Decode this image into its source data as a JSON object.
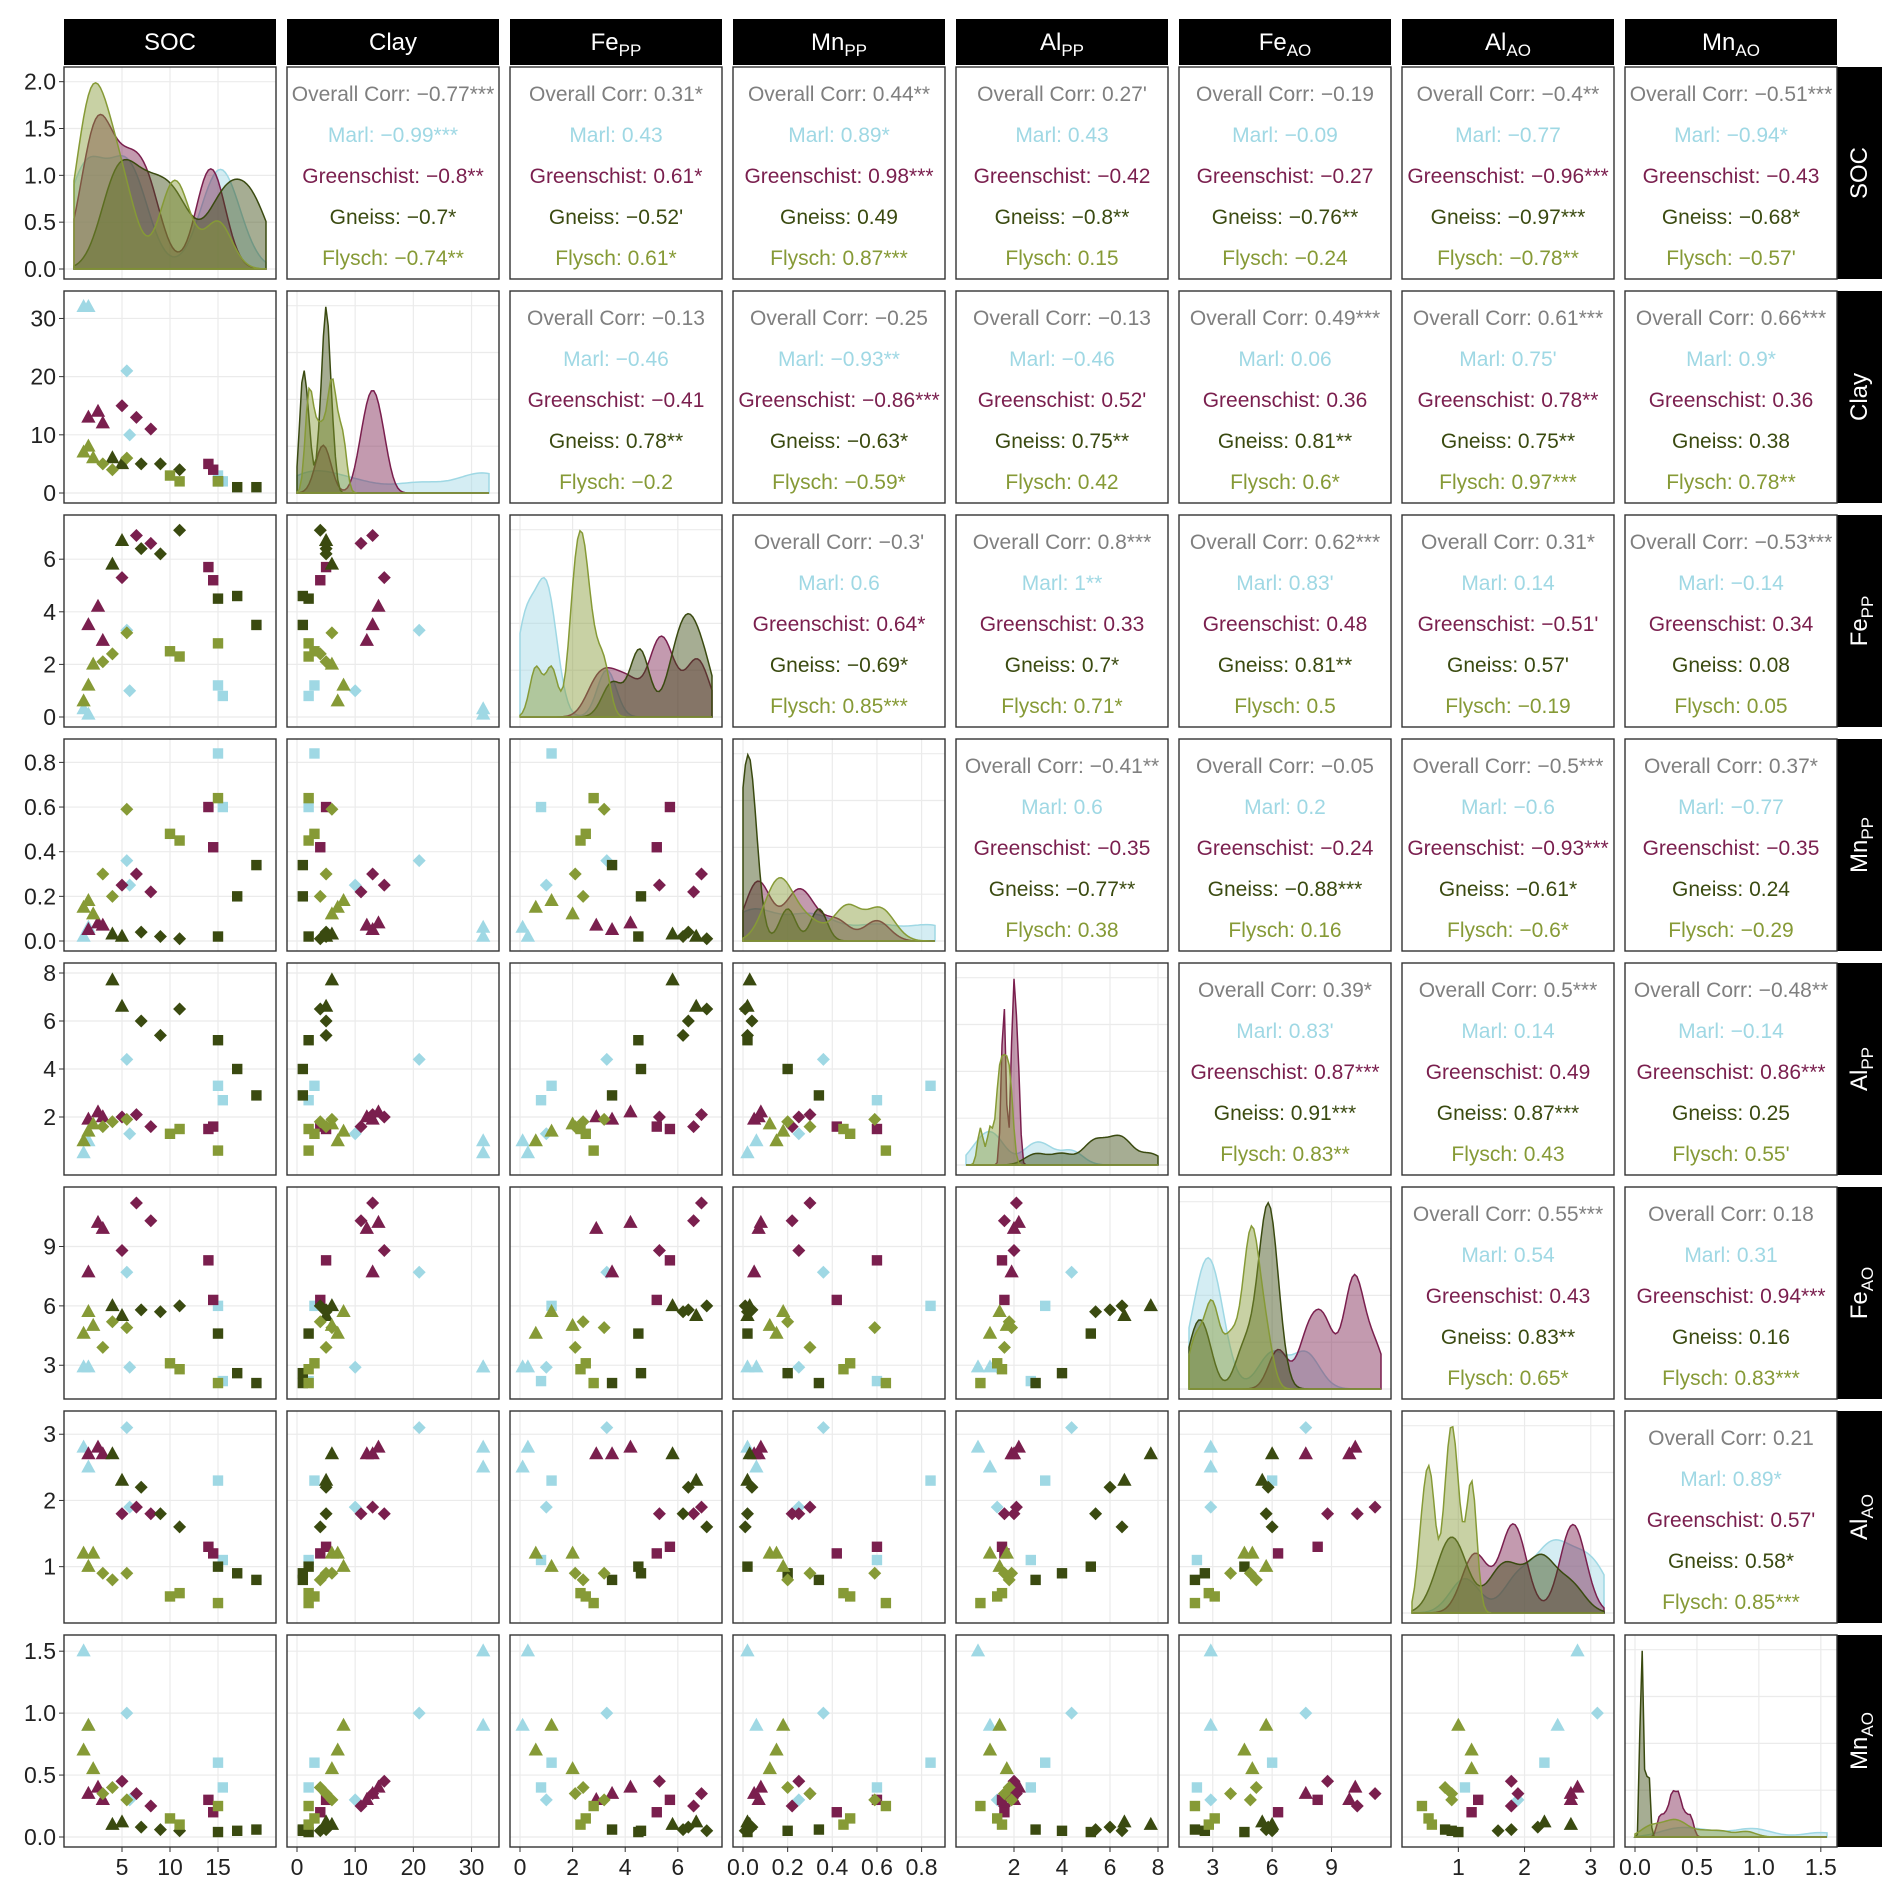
{
  "chart_data": {
    "type": "scatter",
    "title": "",
    "variables": [
      {
        "name": "SOC",
        "base": "SOC",
        "sub": "",
        "ticks": [
          5,
          10,
          15
        ],
        "range": [
          0,
          20
        ]
      },
      {
        "name": "Clay",
        "base": "Clay",
        "sub": "",
        "ticks": [
          0,
          10,
          20,
          30
        ],
        "range": [
          0,
          33
        ]
      },
      {
        "name": "FePP",
        "base": "Fe",
        "sub": "PP",
        "ticks": [
          0,
          2,
          4,
          6
        ],
        "range": [
          0,
          7.3
        ]
      },
      {
        "name": "MnPP",
        "base": "Mn",
        "sub": "PP",
        "ticks": [
          0.0,
          0.2,
          0.4,
          0.6,
          0.8
        ],
        "range": [
          0,
          0.86
        ]
      },
      {
        "name": "AlPP",
        "base": "Al",
        "sub": "PP",
        "ticks": [
          2,
          4,
          6,
          8
        ],
        "range": [
          0,
          8
        ]
      },
      {
        "name": "FeAO",
        "base": "Fe",
        "sub": "AO",
        "ticks": [
          3,
          6,
          9
        ],
        "range": [
          1.8,
          11.5
        ]
      },
      {
        "name": "AlAO",
        "base": "Al",
        "sub": "AO",
        "ticks": [
          1,
          2,
          3
        ],
        "range": [
          0.3,
          3.2
        ]
      },
      {
        "name": "MnAO",
        "base": "Mn",
        "sub": "AO",
        "ticks": [
          0.0,
          0.5,
          1.0,
          1.5
        ],
        "range": [
          0,
          1.55
        ]
      }
    ],
    "density_axis": {
      "ticks": [
        "0.0",
        "0.5",
        "1.0",
        "1.5",
        "2.0"
      ],
      "range": [
        0,
        2.05
      ]
    },
    "groups": [
      {
        "name": "Marl",
        "color": "#9fd8e4"
      },
      {
        "name": "Greenschist",
        "color": "#7a1f4e"
      },
      {
        "name": "Gneiss",
        "color": "#3a4a10"
      },
      {
        "name": "Flysch",
        "color": "#869a36"
      }
    ],
    "overall_label": "Overall Corr",
    "overall_color": "#7f7f7f",
    "samples": [
      {
        "g": 0,
        "s": "triangle",
        "v": [
          1.0,
          32,
          0.3,
          0.02,
          0.5,
          2.9,
          2.8,
          1.5
        ]
      },
      {
        "g": 0,
        "s": "triangle",
        "v": [
          1.5,
          32,
          0.1,
          0.06,
          1.0,
          2.9,
          2.5,
          0.9
        ]
      },
      {
        "g": 0,
        "s": "diamond",
        "v": [
          5.5,
          21,
          3.3,
          0.36,
          4.4,
          7.7,
          3.1,
          1.0
        ]
      },
      {
        "g": 0,
        "s": "diamond",
        "v": [
          5.8,
          10,
          1.0,
          0.25,
          1.3,
          2.9,
          1.9,
          0.3
        ]
      },
      {
        "g": 0,
        "s": "square",
        "v": [
          15,
          3,
          1.2,
          0.84,
          3.3,
          6.0,
          2.3,
          0.6
        ]
      },
      {
        "g": 0,
        "s": "square",
        "v": [
          15.5,
          2,
          0.8,
          0.6,
          2.7,
          2.2,
          1.1,
          0.4
        ]
      },
      {
        "g": 1,
        "s": "triangle",
        "v": [
          1.5,
          13,
          3.5,
          0.05,
          1.9,
          7.7,
          2.7,
          0.35
        ]
      },
      {
        "g": 1,
        "s": "triangle",
        "v": [
          2.5,
          14,
          4.2,
          0.08,
          2.2,
          10.2,
          2.8,
          0.4
        ]
      },
      {
        "g": 1,
        "s": "triangle",
        "v": [
          3.0,
          12,
          2.9,
          0.07,
          2.0,
          9.9,
          2.7,
          0.3
        ]
      },
      {
        "g": 1,
        "s": "diamond",
        "v": [
          5.0,
          15,
          5.3,
          0.25,
          2.0,
          8.8,
          1.8,
          0.45
        ]
      },
      {
        "g": 1,
        "s": "diamond",
        "v": [
          6.5,
          13,
          6.9,
          0.3,
          2.1,
          11.2,
          1.9,
          0.35
        ]
      },
      {
        "g": 1,
        "s": "diamond",
        "v": [
          8.0,
          11,
          6.6,
          0.22,
          1.6,
          10.3,
          1.8,
          0.25
        ]
      },
      {
        "g": 1,
        "s": "square",
        "v": [
          14,
          5,
          5.7,
          0.6,
          1.5,
          8.3,
          1.3,
          0.3
        ]
      },
      {
        "g": 1,
        "s": "square",
        "v": [
          14.5,
          4,
          5.2,
          0.42,
          1.6,
          6.3,
          1.2,
          0.2
        ]
      },
      {
        "g": 2,
        "s": "triangle",
        "v": [
          4.0,
          6,
          5.8,
          0.03,
          7.7,
          6.0,
          2.7,
          0.1
        ]
      },
      {
        "g": 2,
        "s": "triangle",
        "v": [
          5.0,
          5,
          6.7,
          0.02,
          6.6,
          5.5,
          2.3,
          0.12
        ]
      },
      {
        "g": 2,
        "s": "diamond",
        "v": [
          7.0,
          5,
          6.4,
          0.04,
          6.0,
          5.8,
          2.2,
          0.08
        ]
      },
      {
        "g": 2,
        "s": "diamond",
        "v": [
          9.0,
          5,
          6.2,
          0.02,
          5.4,
          5.7,
          1.8,
          0.06
        ]
      },
      {
        "g": 2,
        "s": "diamond",
        "v": [
          11,
          4,
          7.1,
          0.01,
          6.5,
          6.0,
          1.6,
          0.05
        ]
      },
      {
        "g": 2,
        "s": "square",
        "v": [
          15,
          2,
          4.5,
          0.02,
          5.2,
          4.6,
          1.0,
          0.04
        ]
      },
      {
        "g": 2,
        "s": "square",
        "v": [
          17,
          1,
          4.6,
          0.2,
          4.0,
          2.6,
          0.9,
          0.05
        ]
      },
      {
        "g": 2,
        "s": "square",
        "v": [
          19,
          1,
          3.5,
          0.34,
          2.9,
          2.1,
          0.8,
          0.06
        ]
      },
      {
        "g": 3,
        "s": "triangle",
        "v": [
          1.0,
          7,
          0.6,
          0.15,
          1.0,
          4.6,
          1.2,
          0.7
        ]
      },
      {
        "g": 3,
        "s": "triangle",
        "v": [
          1.5,
          8,
          1.2,
          0.18,
          1.4,
          5.7,
          1.0,
          0.9
        ]
      },
      {
        "g": 3,
        "s": "triangle",
        "v": [
          2.0,
          6,
          2.0,
          0.12,
          1.7,
          5.0,
          1.2,
          0.55
        ]
      },
      {
        "g": 3,
        "s": "diamond",
        "v": [
          3.0,
          5,
          2.1,
          0.3,
          1.6,
          3.9,
          0.9,
          0.35
        ]
      },
      {
        "g": 3,
        "s": "diamond",
        "v": [
          4.0,
          4,
          2.4,
          0.2,
          1.8,
          5.2,
          0.8,
          0.4
        ]
      },
      {
        "g": 3,
        "s": "diamond",
        "v": [
          5.5,
          6,
          3.2,
          0.59,
          1.9,
          4.9,
          0.9,
          0.3
        ]
      },
      {
        "g": 3,
        "s": "square",
        "v": [
          10,
          3,
          2.5,
          0.48,
          1.3,
          3.1,
          0.55,
          0.15
        ]
      },
      {
        "g": 3,
        "s": "square",
        "v": [
          11,
          2,
          2.3,
          0.45,
          1.5,
          2.8,
          0.6,
          0.1
        ]
      },
      {
        "g": 3,
        "s": "square",
        "v": [
          15,
          2,
          2.8,
          0.64,
          0.6,
          2.1,
          0.45,
          0.25
        ]
      }
    ],
    "correlations": [
      {
        "row": 0,
        "col": 1,
        "values": [
          "−0.77***",
          "−0.99***",
          "−0.8**",
          "−0.7*",
          "−0.74**"
        ]
      },
      {
        "row": 0,
        "col": 2,
        "values": [
          "0.31*",
          "0.43",
          "0.61*",
          "−0.52'",
          "0.61*"
        ]
      },
      {
        "row": 0,
        "col": 3,
        "values": [
          "0.44**",
          "0.89*",
          "0.98***",
          "0.49",
          "0.87***"
        ]
      },
      {
        "row": 0,
        "col": 4,
        "values": [
          "0.27'",
          "0.43",
          "−0.42",
          "−0.8**",
          "0.15"
        ]
      },
      {
        "row": 0,
        "col": 5,
        "values": [
          "−0.19",
          "−0.09",
          "−0.27",
          "−0.76**",
          "−0.24"
        ]
      },
      {
        "row": 0,
        "col": 6,
        "values": [
          "−0.4**",
          "−0.77",
          "−0.96***",
          "−0.97***",
          "−0.78**"
        ]
      },
      {
        "row": 0,
        "col": 7,
        "values": [
          "−0.51***",
          "−0.94*",
          "−0.43",
          "−0.68*",
          "−0.57'"
        ]
      },
      {
        "row": 1,
        "col": 2,
        "values": [
          "−0.13",
          "−0.46",
          "−0.41",
          "0.78**",
          "−0.2"
        ]
      },
      {
        "row": 1,
        "col": 3,
        "values": [
          "−0.25",
          "−0.93**",
          "−0.86***",
          "−0.63*",
          "−0.59*"
        ]
      },
      {
        "row": 1,
        "col": 4,
        "values": [
          "−0.13",
          "−0.46",
          "0.52'",
          "0.75**",
          "0.42"
        ]
      },
      {
        "row": 1,
        "col": 5,
        "values": [
          "0.49***",
          "0.06",
          "0.36",
          "0.81**",
          "0.6*"
        ]
      },
      {
        "row": 1,
        "col": 6,
        "values": [
          "0.61***",
          "0.75'",
          "0.78**",
          "0.75**",
          "0.97***"
        ]
      },
      {
        "row": 1,
        "col": 7,
        "values": [
          "0.66***",
          "0.9*",
          "0.36",
          "0.38",
          "0.78**"
        ]
      },
      {
        "row": 2,
        "col": 3,
        "values": [
          "−0.3'",
          "0.6",
          "0.64*",
          "−0.69*",
          "0.85***"
        ]
      },
      {
        "row": 2,
        "col": 4,
        "values": [
          "0.8***",
          "1**",
          "0.33",
          "0.7*",
          "0.71*"
        ]
      },
      {
        "row": 2,
        "col": 5,
        "values": [
          "0.62***",
          "0.83'",
          "0.48",
          "0.81**",
          "0.5"
        ]
      },
      {
        "row": 2,
        "col": 6,
        "values": [
          "0.31*",
          "0.14",
          "−0.51'",
          "0.57'",
          "−0.19"
        ]
      },
      {
        "row": 2,
        "col": 7,
        "values": [
          "−0.53***",
          "−0.14",
          "0.34",
          "0.08",
          "0.05"
        ]
      },
      {
        "row": 3,
        "col": 4,
        "values": [
          "−0.41**",
          "0.6",
          "−0.35",
          "−0.77**",
          "0.38"
        ]
      },
      {
        "row": 3,
        "col": 5,
        "values": [
          "−0.05",
          "0.2",
          "−0.24",
          "−0.88***",
          "0.16"
        ]
      },
      {
        "row": 3,
        "col": 6,
        "values": [
          "−0.5***",
          "−0.6",
          "−0.93***",
          "−0.61*",
          "−0.6*"
        ]
      },
      {
        "row": 3,
        "col": 7,
        "values": [
          "0.37*",
          "−0.77",
          "−0.35",
          "0.24",
          "−0.29"
        ]
      },
      {
        "row": 4,
        "col": 5,
        "values": [
          "0.39*",
          "0.83'",
          "0.87***",
          "0.91***",
          "0.83**"
        ]
      },
      {
        "row": 4,
        "col": 6,
        "values": [
          "0.5***",
          "0.14",
          "0.49",
          "0.87***",
          "0.43"
        ]
      },
      {
        "row": 4,
        "col": 7,
        "values": [
          "−0.48**",
          "−0.14",
          "0.86***",
          "0.25",
          "0.55'"
        ]
      },
      {
        "row": 5,
        "col": 6,
        "values": [
          "0.55***",
          "0.54",
          "0.43",
          "0.83**",
          "0.65*"
        ]
      },
      {
        "row": 5,
        "col": 7,
        "values": [
          "0.18",
          "0.31",
          "0.94***",
          "0.16",
          "0.83***"
        ]
      },
      {
        "row": 6,
        "col": 7,
        "values": [
          "0.21",
          "0.89*",
          "0.57'",
          "0.58*",
          "0.85***"
        ]
      }
    ]
  }
}
